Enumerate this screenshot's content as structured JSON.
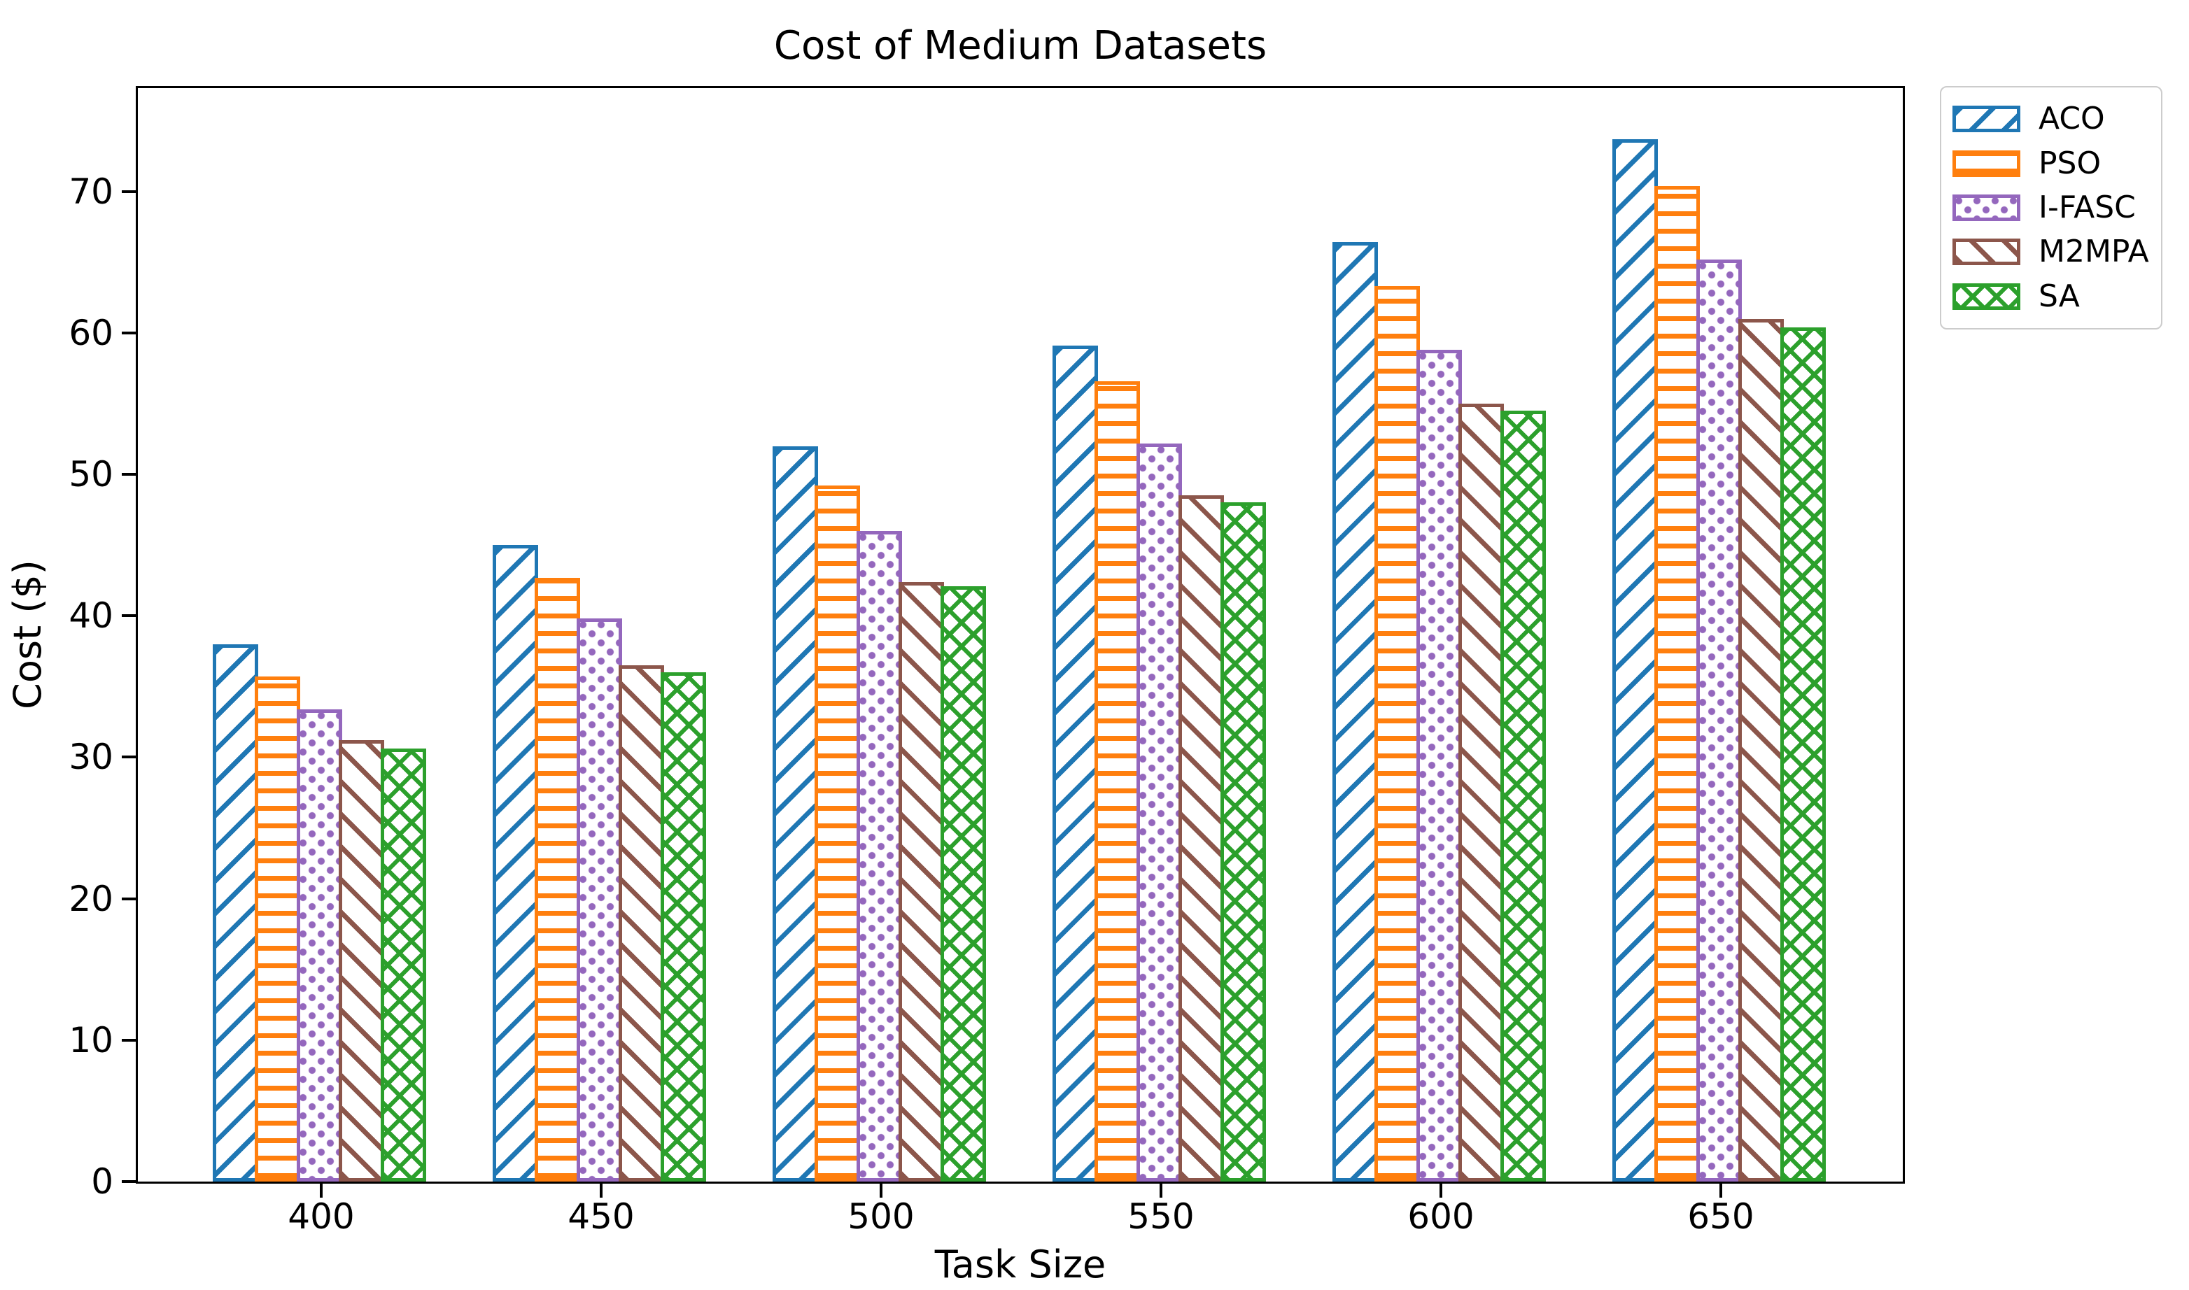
{
  "figure": {
    "title": "Cost of Medium Datasets",
    "background_color": "#ffffff",
    "spine_color": "#000000",
    "legend_border_color": "#cccccc"
  },
  "chart_data": {
    "type": "bar",
    "title": "Cost of Medium Datasets",
    "xlabel": "Task Size",
    "ylabel": "Cost ($)",
    "categories": [
      "400",
      "450",
      "500",
      "550",
      "600",
      "650"
    ],
    "series": [
      {
        "name": "ACO",
        "color": "#1f77b4",
        "hatch": "diagonal-forward",
        "values": [
          38.0,
          45.0,
          52.0,
          59.1,
          66.4,
          73.7
        ]
      },
      {
        "name": "PSO",
        "color": "#ff7f0e",
        "hatch": "horizontal",
        "values": [
          35.7,
          42.7,
          49.2,
          56.6,
          63.3,
          70.4
        ]
      },
      {
        "name": "I-FASC",
        "color": "#9467bd",
        "hatch": "dots",
        "values": [
          33.4,
          39.8,
          46.0,
          52.2,
          58.8,
          65.2
        ]
      },
      {
        "name": "M2MPA",
        "color": "#8c564b",
        "hatch": "diagonal-back",
        "values": [
          31.2,
          36.5,
          42.4,
          48.5,
          55.0,
          61.0
        ]
      },
      {
        "name": "SA",
        "color": "#2ca02c",
        "hatch": "cross",
        "values": [
          30.6,
          36.0,
          42.1,
          48.0,
          54.5,
          60.4
        ]
      }
    ],
    "yticks": [
      0,
      10,
      20,
      30,
      40,
      50,
      60,
      70
    ],
    "ylim": [
      0,
      77.3
    ],
    "grid": false,
    "legend_position": "upper-right-outside",
    "bar_fill": "#ffffff"
  }
}
